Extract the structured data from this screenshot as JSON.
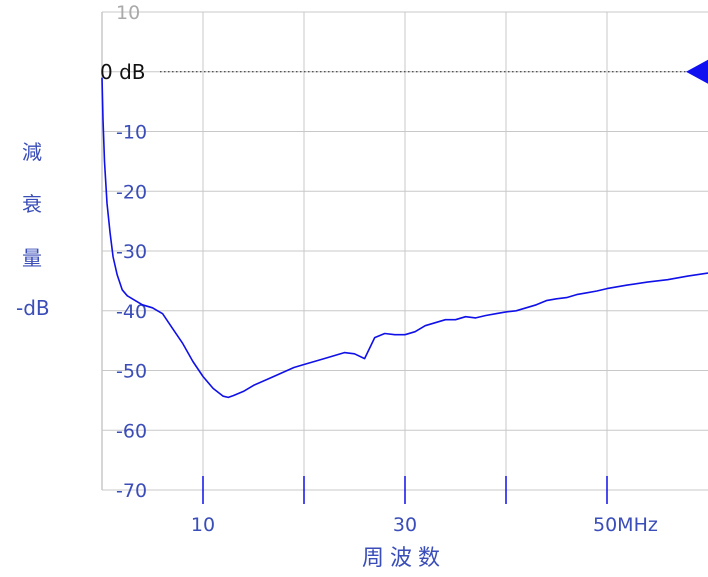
{
  "chart_data": {
    "type": "line",
    "title": "",
    "ylabel_chars": [
      "減",
      "衰",
      "量",
      "-dB"
    ],
    "xlabel": "周波数",
    "xlim": [
      0,
      60
    ],
    "ylim": [
      -70,
      10
    ],
    "y_ticks": [
      10,
      -10,
      -20,
      -30,
      -40,
      -50,
      -60,
      -70
    ],
    "x_ticks": [
      10,
      20,
      30,
      40,
      50
    ],
    "x_tick_labels": [
      {
        "x": 10,
        "label": "10"
      },
      {
        "x": 30,
        "label": "30"
      },
      {
        "x": 50,
        "label": "50MHz"
      }
    ],
    "reference": {
      "value": 0,
      "label": "0 dB"
    },
    "grid": true,
    "colors": {
      "line": "#1010e8",
      "grid": "#c8c8c8",
      "text": "#3a4db8",
      "marker": "#1010f0"
    },
    "series": [
      {
        "x": [
          0,
          0.1,
          0.25,
          0.5,
          0.8,
          1.1,
          1.5,
          2,
          2.5,
          3,
          4,
          5,
          5.5,
          6,
          7,
          8,
          9,
          10,
          11,
          12,
          12.5,
          13,
          14,
          15,
          17,
          19,
          20,
          22,
          23,
          24,
          25,
          26,
          27,
          28,
          29,
          30,
          31,
          32,
          33,
          34,
          35,
          36,
          37,
          38,
          39,
          40,
          41,
          42,
          43,
          44,
          45,
          46,
          47,
          48,
          49,
          50,
          52,
          54,
          56,
          58,
          60
        ],
        "y": [
          -1,
          -8,
          -15,
          -22,
          -27,
          -31,
          -34,
          -36.5,
          -37.5,
          -38,
          -39,
          -39.5,
          -40,
          -40.5,
          -43,
          -45.5,
          -48.5,
          -51,
          -53,
          -54.3,
          -54.5,
          -54.2,
          -53.5,
          -52.5,
          -51,
          -49.5,
          -49,
          -48,
          -47.5,
          -47,
          -47.2,
          -48,
          -44.5,
          -43.8,
          -44,
          -44,
          -43.5,
          -42.5,
          -42,
          -41.5,
          -41.5,
          -41,
          -41.2,
          -40.8,
          -40.5,
          -40.2,
          -40,
          -39.5,
          -39,
          -38.3,
          -38,
          -37.8,
          -37.3,
          -37,
          -36.7,
          -36.3,
          -35.7,
          -35.2,
          -34.8,
          -34.2,
          -33.7
        ]
      }
    ]
  }
}
